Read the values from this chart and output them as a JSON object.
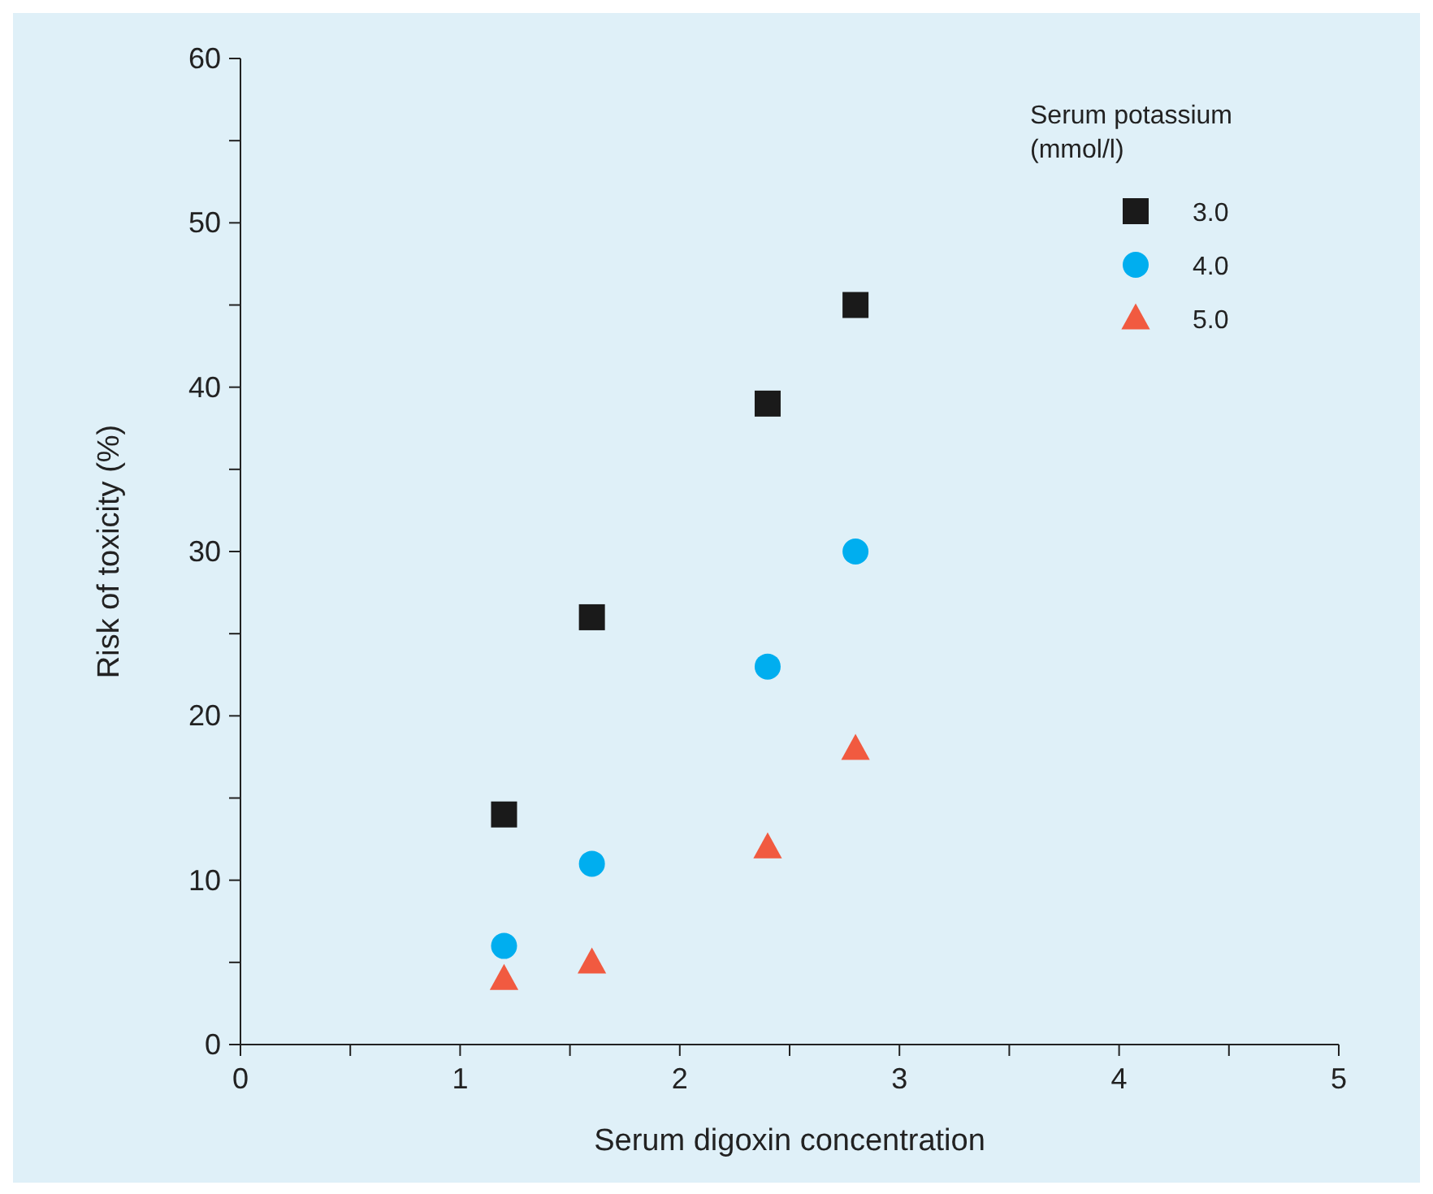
{
  "chart_data": {
    "type": "scatter",
    "xlabel": "Serum digoxin concentration",
    "ylabel": "Risk of toxicity (%)",
    "legend_title": "Serum potassium (mmol/l)",
    "legend": "top right",
    "grid": false,
    "x": [
      1.2,
      1.6,
      2.4,
      2.8
    ],
    "series": [
      {
        "name": "3.0",
        "color": "#1a1a1a",
        "marker": "square",
        "values": [
          14,
          26,
          39,
          45
        ]
      },
      {
        "name": "4.0",
        "color": "#00aeef",
        "marker": "circle",
        "values": [
          6,
          11,
          23,
          30
        ]
      },
      {
        "name": "5.0",
        "color": "#f15a40",
        "marker": "triangle",
        "values": [
          4,
          5,
          12,
          18
        ]
      }
    ],
    "xlim": [
      0,
      5
    ],
    "xticks": [
      0,
      {
        "value": 0.5,
        "label": null
      },
      1,
      {
        "value": 1.5,
        "label": null
      },
      2,
      {
        "value": 2.5,
        "label": null
      },
      3,
      {
        "value": 3.5,
        "label": null
      },
      4,
      {
        "value": 4.5,
        "label": null
      },
      5
    ],
    "ylim": [
      0,
      60
    ],
    "yticks": [
      0,
      {
        "value": 5,
        "label": null
      },
      10,
      {
        "value": 15,
        "label": null
      },
      20,
      {
        "value": 25,
        "label": null
      },
      30,
      {
        "value": 35,
        "label": null
      },
      40,
      {
        "value": 45,
        "label": null
      },
      50,
      {
        "value": 55,
        "label": null
      },
      60
    ]
  }
}
